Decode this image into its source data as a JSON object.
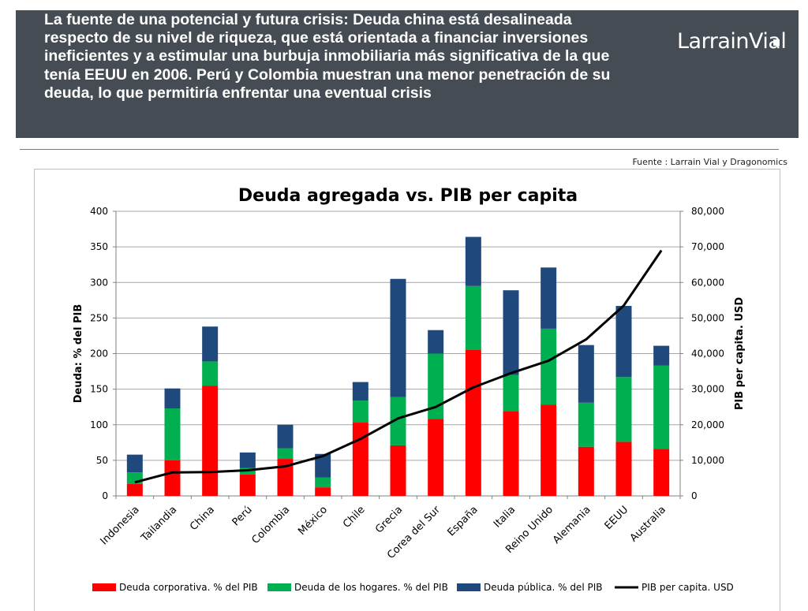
{
  "header": {
    "title": "La fuente de una potencial y futura crisis: Deuda china está desalineada respecto de su nivel de riqueza, que está orientada a financiar inversiones ineficientes y a estimular una burbuja inmobiliaria más significativa de la que tenía EEUU en 2006. Perú y Colombia muestran una menor penetración de su deuda, lo que permitiría enfrentar una eventual crisis",
    "logo_text": "LarrainVial"
  },
  "source": "Fuente : Larrain Vial y Dragonomics",
  "colors": {
    "header_bg": "#454c54",
    "corporate": "#ff0000",
    "households": "#00b050",
    "public": "#1f497d",
    "gdp_line": "#000000"
  },
  "chart_data": {
    "type": "bar",
    "title": "Deuda agregada vs. PIB per capita",
    "ylabel": "Deuda: % del PIB",
    "y2label": "PIB per capita. USD",
    "ylim": [
      0,
      400
    ],
    "y2lim": [
      0,
      80000
    ],
    "yticks": [
      "0",
      "50",
      "100",
      "150",
      "200",
      "250",
      "300",
      "350",
      "400"
    ],
    "y2ticks": [
      "0",
      "10,000",
      "20,000",
      "30,000",
      "40,000",
      "50,000",
      "60,000",
      "70,000",
      "80,000"
    ],
    "grid": true,
    "legend_position": "bottom",
    "categories": [
      "Indonesia",
      "Tailandia",
      "China",
      "Perú",
      "Colombia",
      "México",
      "Chile",
      "Grecia",
      "Corea del Sur",
      "España",
      "Italia",
      "Reino Unido",
      "Alemania",
      "EEUU",
      "Australia"
    ],
    "series": [
      {
        "name": "Deuda corporativa. % del PIB",
        "type": "bar",
        "axis": "left",
        "values": [
          17,
          50,
          155,
          30,
          52,
          12,
          103,
          71,
          108,
          205,
          119,
          128,
          69,
          76,
          66
        ]
      },
      {
        "name": "Deuda de los hogares. % del PIB",
        "type": "bar",
        "axis": "left",
        "values": [
          16,
          73,
          34,
          9,
          15,
          14,
          31,
          68,
          92,
          90,
          51,
          107,
          62,
          91,
          117
        ]
      },
      {
        "name": "Deuda pública. % del PIB",
        "type": "bar",
        "axis": "left",
        "values": [
          25,
          28,
          49,
          22,
          33,
          33,
          26,
          166,
          33,
          69,
          119,
          86,
          81,
          100,
          28
        ]
      },
      {
        "name": "PIB per capita. USD",
        "type": "line",
        "axis": "right",
        "values": [
          3800,
          6600,
          6700,
          7200,
          8300,
          11200,
          16000,
          21800,
          25000,
          30500,
          34500,
          38000,
          44000,
          53500,
          69000
        ]
      }
    ]
  }
}
